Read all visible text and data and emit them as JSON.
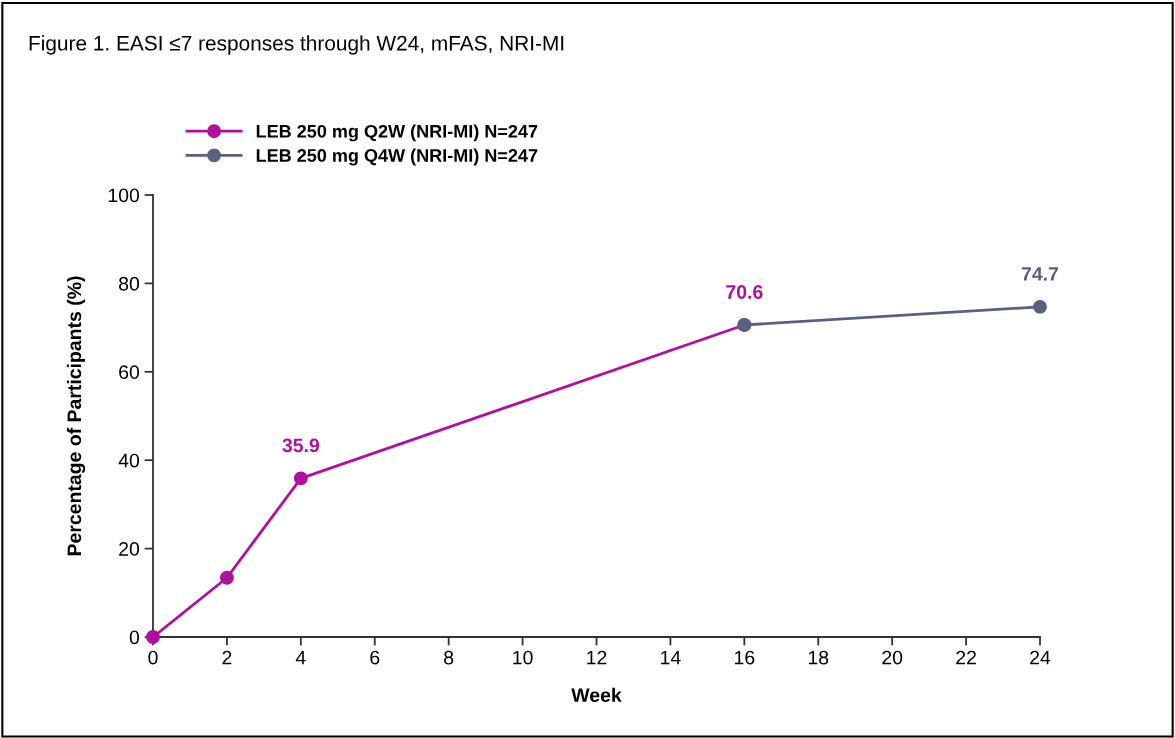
{
  "chart_data": {
    "type": "line",
    "title": "Figure 1. EASI ≤7 responses through W24, mFAS, NRI-MI",
    "xlabel": "Week",
    "ylabel": "Percentage of Participants (%)",
    "series": [
      {
        "name": "LEB 250 mg Q2W (NRI-MI) N=247",
        "color": "#b0109e",
        "x": [
          0,
          2,
          4,
          16
        ],
        "values": [
          0,
          13.4,
          35.9,
          70.6
        ],
        "value_labels": [
          null,
          null,
          "35.9",
          "70.6"
        ]
      },
      {
        "name": "LEB 250 mg Q4W (NRI-MI) N=247",
        "color": "#58627f",
        "x": [
          16,
          24
        ],
        "values": [
          70.6,
          74.7
        ],
        "value_labels": [
          null,
          "74.7"
        ]
      }
    ],
    "xlim": [
      0,
      24
    ],
    "xticks": [
      0,
      2,
      4,
      6,
      8,
      10,
      12,
      14,
      16,
      18,
      20,
      22,
      24
    ],
    "ylim": [
      0,
      100
    ],
    "yticks": [
      0,
      20,
      40,
      60,
      80,
      100
    ],
    "grid": false,
    "legend": "top left",
    "marker": "circle",
    "line_style": "solid"
  }
}
